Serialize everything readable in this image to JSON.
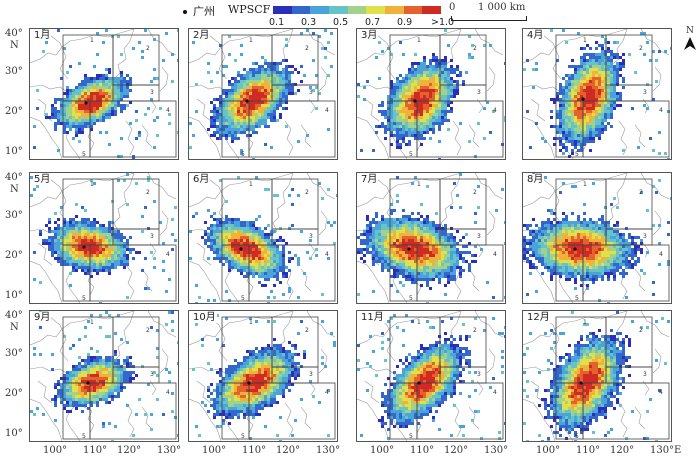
{
  "legend": {
    "city_marker_label": "广州",
    "index_label": "WPSCF",
    "scale_bar_zero": "0",
    "scale_bar_label": "1 000 km",
    "colorbar": {
      "colors": [
        "#2b2fb8",
        "#3367cc",
        "#4aa3d9",
        "#66c4c8",
        "#a2d28a",
        "#e0e04a",
        "#f0b23a",
        "#e4622c",
        "#cf2a24"
      ],
      "labels": [
        "0.1",
        "0.3",
        "0.5",
        "0.7",
        "0.9",
        ">1.0"
      ]
    }
  },
  "north_arrow": {
    "label": "N"
  },
  "axes": {
    "lat_ticks": [
      "40°",
      "30°",
      "20°",
      "10°"
    ],
    "lat_unit": "N",
    "lon_ticks": [
      "100°",
      "110°",
      "120°",
      "130°"
    ],
    "lon_unit": "E"
  },
  "panels": [
    {
      "month": "1月"
    },
    {
      "month": "2月"
    },
    {
      "month": "3月"
    },
    {
      "month": "4月"
    },
    {
      "month": "5月"
    },
    {
      "month": "6月"
    },
    {
      "month": "7月"
    },
    {
      "month": "8月"
    },
    {
      "month": "9月"
    },
    {
      "month": "10月"
    },
    {
      "month": "11月"
    },
    {
      "month": "12月"
    }
  ],
  "region_labels": [
    "1",
    "2",
    "3",
    "4",
    "5"
  ]
}
